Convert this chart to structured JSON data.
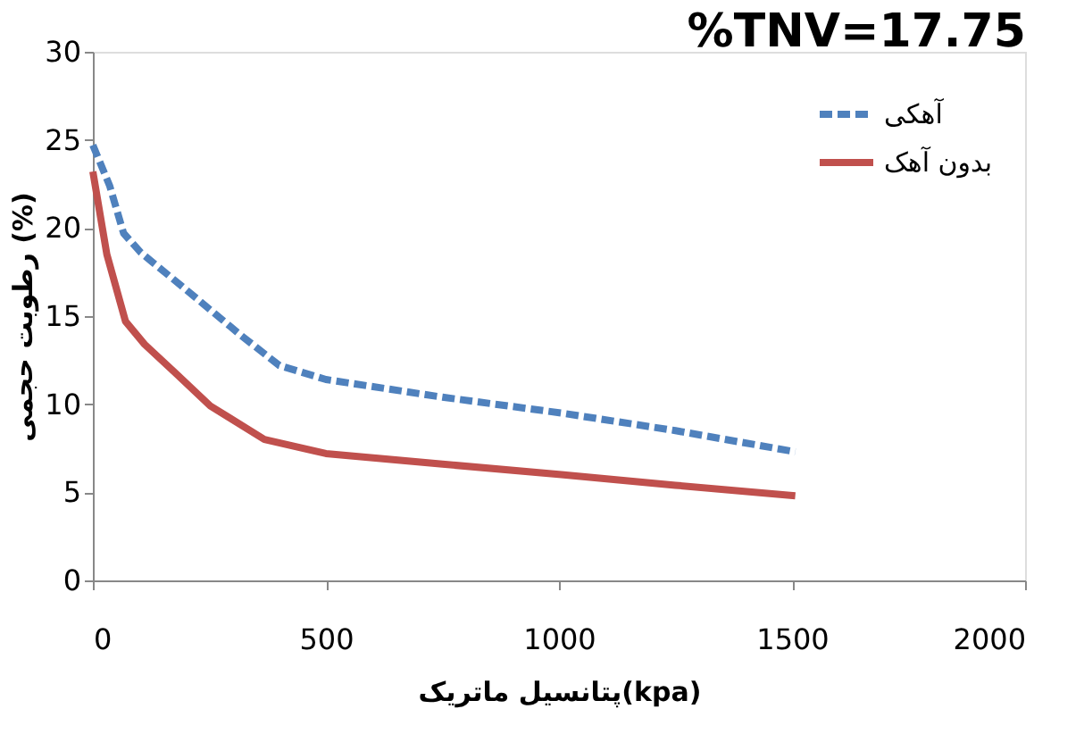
{
  "chart_data": {
    "type": "line",
    "title": "%TNV=17.75",
    "xlabel": "پتانسیل ماتریک(kpa)",
    "ylabel": "رطوبت حجمی (%)",
    "xlim": [
      0,
      2000
    ],
    "xticks": [
      0,
      500,
      1000,
      1500,
      2000
    ],
    "ylim": [
      0,
      30
    ],
    "yticks": [
      0,
      5,
      10,
      15,
      20,
      25,
      30
    ],
    "grid": false,
    "legend": "top right",
    "marker": "none",
    "series": [
      {
        "name": "آهکی",
        "color": "#4f81bd",
        "line_style": "dashed",
        "x": [
          0,
          36,
          66,
          103,
          200,
          318,
          400,
          500,
          750,
          1005,
          1250,
          1507
        ],
        "values": [
          24.7,
          22.4,
          19.7,
          18.6,
          16.5,
          13.9,
          12.2,
          11.4,
          10.4,
          9.5,
          8.5,
          7.3
        ]
      },
      {
        "name": "بدون آهک",
        "color": "#c0504d",
        "line_style": "solid",
        "x": [
          0,
          30,
          70,
          111,
          180,
          252,
          368,
          500,
          750,
          1005,
          1250,
          1507
        ],
        "values": [
          23.2,
          18.5,
          14.7,
          13.4,
          11.7,
          9.9,
          8.0,
          7.2,
          6.6,
          6.0,
          5.4,
          4.8
        ]
      }
    ]
  }
}
